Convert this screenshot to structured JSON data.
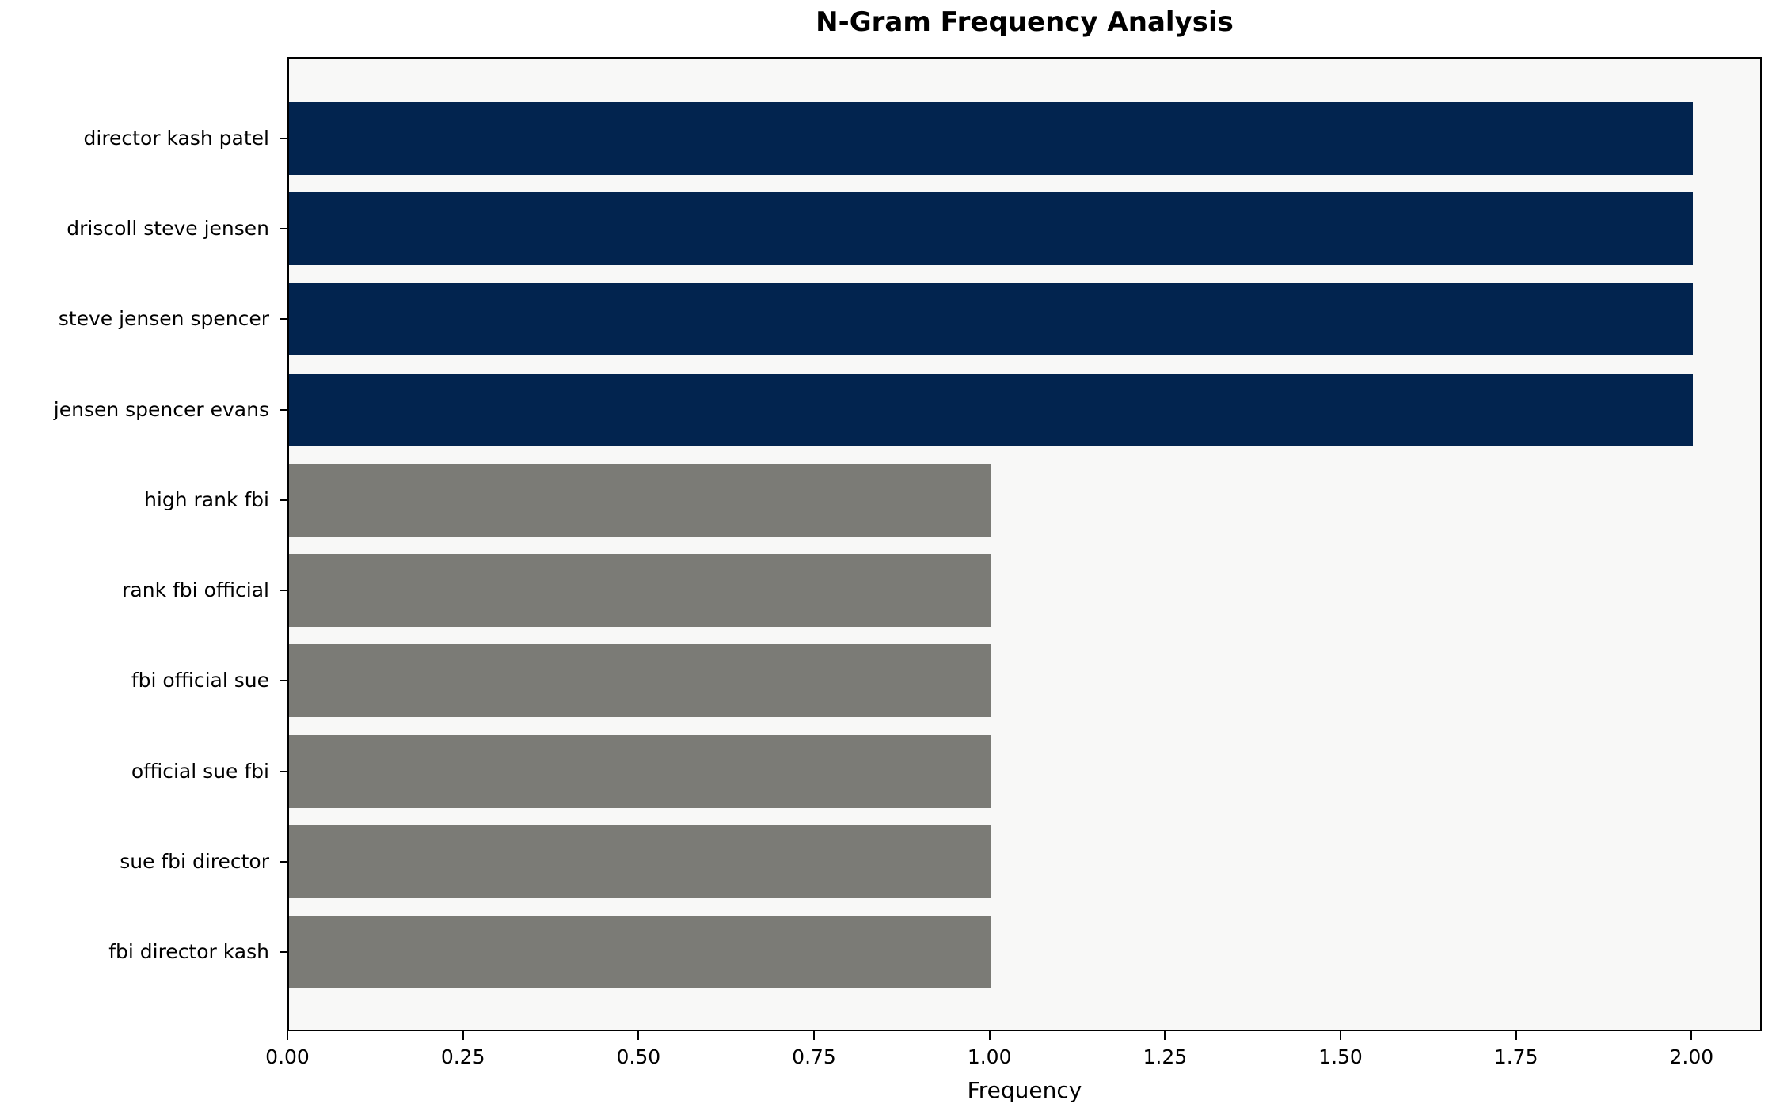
{
  "chart_data": {
    "type": "bar",
    "orientation": "horizontal",
    "title": "N-Gram Frequency Analysis",
    "xlabel": "Frequency",
    "ylabel": "",
    "categories": [
      "director kash patel",
      "driscoll steve jensen",
      "steve jensen spencer",
      "jensen spencer evans",
      "high rank fbi",
      "rank fbi official",
      "fbi official sue",
      "official sue fbi",
      "sue fbi director",
      "fbi director kash"
    ],
    "values": [
      2,
      2,
      2,
      2,
      1,
      1,
      1,
      1,
      1,
      1
    ],
    "bar_colors": [
      "#02244f",
      "#02244f",
      "#02244f",
      "#02244f",
      "#7b7b76",
      "#7b7b76",
      "#7b7b76",
      "#7b7b76",
      "#7b7b76",
      "#7b7b76"
    ],
    "xlim": [
      0,
      2.1
    ],
    "xtick_labels": [
      "0.00",
      "0.25",
      "0.50",
      "0.75",
      "1.00",
      "1.25",
      "1.50",
      "1.75",
      "2.00"
    ],
    "xtick_values": [
      0,
      0.25,
      0.5,
      0.75,
      1.0,
      1.25,
      1.5,
      1.75,
      2.0
    ],
    "grid": false,
    "legend": null,
    "colors": {
      "highlight_bar": "#02244f",
      "default_bar": "#7b7b76",
      "plot_background": "#f8f8f7",
      "figure_background": "#ffffff",
      "text": "#000000"
    }
  }
}
